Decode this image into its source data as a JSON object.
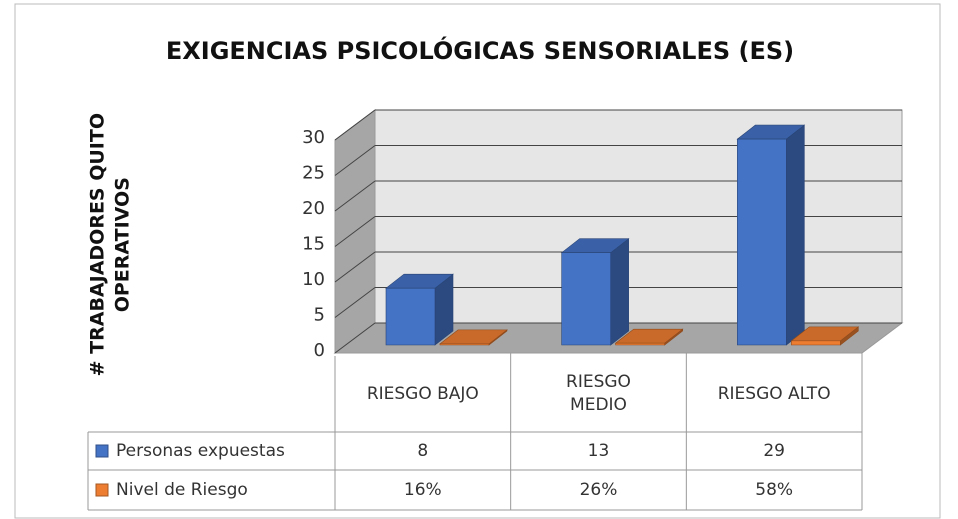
{
  "chart_data": {
    "type": "bar3d",
    "title": "EXIGENCIAS PSICOLÓGICAS SENSORIALES (ES)",
    "y_label": "# TRABAJADORES QUITO OPERATIVOS",
    "categories": [
      "RIESGO BAJO",
      "RIESGO MEDIO",
      "RIESGO ALTO"
    ],
    "series": [
      {
        "name": "Personas expuestas",
        "color": "#4472c4",
        "values": [
          8,
          13,
          29
        ]
      },
      {
        "name": "Nivel de Riesgo",
        "color": "#ed7d31",
        "values": [
          0.16,
          0.26,
          0.58
        ],
        "value_labels": [
          "16%",
          "26%",
          "58%"
        ]
      }
    ],
    "ylim": [
      0,
      30
    ],
    "yticks": [
      0,
      5,
      10,
      15,
      20,
      25,
      30
    ],
    "grid": true,
    "data_table": true
  }
}
